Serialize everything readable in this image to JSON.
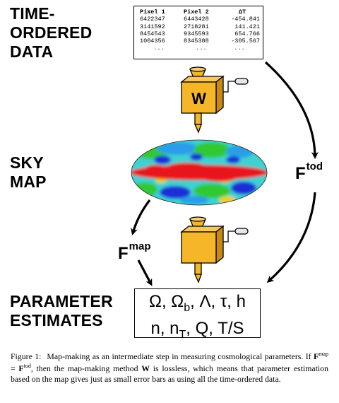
{
  "stages": {
    "tod": [
      "TIME-",
      "ORDERED",
      "DATA"
    ],
    "sky": [
      "SKY",
      "MAP"
    ],
    "params": [
      "PARAMETER",
      "ESTIMATES"
    ]
  },
  "tod_table": {
    "headers": [
      "Pixel 1",
      "Pixel 2",
      "ΔT"
    ],
    "rows": [
      [
        "6422347",
        "6443428",
        "-454.841"
      ],
      [
        "3141592",
        "2718281",
        "141.421"
      ],
      [
        "8454543",
        "9345593",
        "654.766"
      ],
      [
        "1004356",
        "8345388",
        "-305.567"
      ],
      [
        "...",
        "...",
        "..."
      ]
    ]
  },
  "machine_label": "W",
  "flow_labels": {
    "f_tod_main": "F",
    "f_tod_sup": "tod",
    "f_map_main": "F",
    "f_map_sup": "map"
  },
  "parameters": {
    "line1": "Ω, Ωb, Λ, τ, h",
    "line2": "n, nT, Q, T/S"
  },
  "caption": {
    "fig": "Figure 1:",
    "text": "Map-making as an intermediate step in measuring cosmological parameters. If Fmap = Ftod, then the map-making method W is lossless, which means that parameter estimation based on the map gives just as small error bars as using all the time-ordered data."
  },
  "colors": {
    "machine_body": "#f5b62a",
    "machine_shade": "#c98a10",
    "map_red": "#e8141e",
    "map_green": "#32c832",
    "map_blue": "#1f2fd8",
    "map_cyan": "#3fd8e8"
  }
}
